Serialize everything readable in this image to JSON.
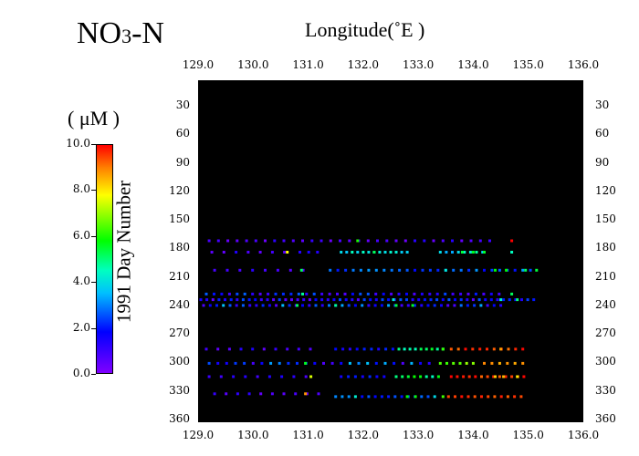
{
  "title": {
    "main": "NO",
    "sub": "3",
    "tail": "-N"
  },
  "colorbar": {
    "unit_label": "( μM )",
    "ticks": [
      "10.0",
      "8.0",
      "6.0",
      "4.0",
      "2.0",
      "0.0"
    ],
    "range": [
      0,
      10
    ],
    "colors": [
      "#8000ff",
      "#0000ff",
      "#00bfff",
      "#00ff00",
      "#ffff00",
      "#ff0000"
    ]
  },
  "chart_data": {
    "type": "scatter",
    "title": "NO3-N",
    "xlabel": "Longitude(˚E )",
    "ylabel": "1991 Day Number",
    "xlim": [
      129.0,
      136.0
    ],
    "ylim": [
      363,
      3
    ],
    "x_ticks": [
      "129.0",
      "130.0",
      "131.0",
      "132.0",
      "133.0",
      "134.0",
      "135.0",
      "136.0"
    ],
    "y_ticks": [
      "30",
      "60",
      "90",
      "120",
      "150",
      "180",
      "210",
      "240",
      "270",
      "300",
      "330",
      "360"
    ],
    "background": "#000000",
    "color_scale": {
      "min": 0,
      "max": 10,
      "unit": "μM"
    },
    "rows": [
      {
        "day": 172,
        "x_start": 129.2,
        "x_end": 134.4,
        "step": 0.17,
        "specials": [
          [
            131.9,
            6
          ],
          [
            134.7,
            10
          ]
        ],
        "low": [
          0.2,
          1.3
        ]
      },
      {
        "day": 184,
        "x_start": 129.25,
        "x_end": 130.7,
        "step": 0.22,
        "low": [
          0.2,
          1.4
        ],
        "specials": [
          [
            130.62,
            7.8
          ]
        ]
      },
      {
        "day": 184,
        "x_start": 130.85,
        "x_end": 131.2,
        "step": 0.16,
        "low": [
          1.2,
          1.5
        ]
      },
      {
        "day": 184,
        "x_start": 131.6,
        "x_end": 132.8,
        "step": 0.1,
        "low": [
          3.5,
          4.6
        ],
        "specials": [
          [
            132.2,
            5.2
          ]
        ]
      },
      {
        "day": 184,
        "x_start": 133.4,
        "x_end": 134.2,
        "step": 0.11,
        "low": [
          3.2,
          4.8
        ],
        "specials": [
          [
            133.8,
            5.4
          ],
          [
            134.0,
            5.6
          ],
          [
            134.2,
            5.5
          ],
          [
            134.7,
            4.5
          ]
        ]
      },
      {
        "day": 203,
        "x_start": 129.3,
        "x_end": 131.0,
        "step": 0.23,
        "low": [
          0.3,
          1.4
        ],
        "specials": [
          [
            130.88,
            5.2
          ]
        ]
      },
      {
        "day": 203,
        "x_start": 131.4,
        "x_end": 135.1,
        "step": 0.14,
        "low": [
          1.8,
          3.2
        ],
        "specials": [
          [
            133.5,
            4.2
          ],
          [
            134.4,
            5.8
          ],
          [
            134.6,
            5.8
          ],
          [
            134.95,
            5.2
          ],
          [
            135.15,
            5.4
          ]
        ]
      },
      {
        "day": 228,
        "x_start": 129.15,
        "x_end": 134.5,
        "step": 0.14,
        "low": [
          0.6,
          2.9
        ],
        "specials": [
          [
            130.9,
            4.8
          ],
          [
            134.7,
            5.2
          ]
        ]
      },
      {
        "day": 234,
        "x_start": 129.05,
        "x_end": 135.2,
        "step": 0.11,
        "low": [
          0.4,
          2.6
        ],
        "specials": [
          [
            132.55,
            4.2
          ],
          [
            134.5,
            4.4
          ],
          [
            134.8,
            5.0
          ]
        ]
      },
      {
        "day": 240,
        "x_start": 129.1,
        "x_end": 134.6,
        "step": 0.12,
        "low": [
          0.6,
          3.6
        ],
        "specials": [
          [
            130.8,
            5.2
          ],
          [
            131.5,
            4.8
          ],
          [
            132.6,
            5.4
          ],
          [
            132.9,
            5.6
          ]
        ]
      },
      {
        "day": 286,
        "x_start": 129.15,
        "x_end": 131.2,
        "step": 0.21,
        "low": [
          0.4,
          1.6
        ]
      },
      {
        "day": 286,
        "x_start": 131.5,
        "x_end": 132.55,
        "step": 0.13,
        "low": [
          0.9,
          2.2
        ]
      },
      {
        "day": 286,
        "x_start": 132.65,
        "x_end": 133.45,
        "step": 0.1,
        "low": [
          4.4,
          5.6
        ]
      },
      {
        "day": 286,
        "x_start": 133.6,
        "x_end": 135.0,
        "step": 0.13,
        "low": [
          9.0,
          10.0
        ],
        "specials": [
          [
            133.45,
            6.2
          ],
          [
            134.5,
            8.7
          ]
        ]
      },
      {
        "day": 301,
        "x_start": 129.2,
        "x_end": 133.2,
        "step": 0.16,
        "low": [
          0.4,
          3.8
        ],
        "specials": [
          [
            130.95,
            5.6
          ]
        ]
      },
      {
        "day": 301,
        "x_start": 133.4,
        "x_end": 134.0,
        "step": 0.12,
        "low": [
          6.2,
          7.0
        ]
      },
      {
        "day": 301,
        "x_start": 134.2,
        "x_end": 134.9,
        "step": 0.14,
        "low": [
          8.5,
          9.2
        ]
      },
      {
        "day": 315,
        "x_start": 129.2,
        "x_end": 131.05,
        "step": 0.22,
        "low": [
          0.6,
          1.8
        ],
        "specials": [
          [
            131.05,
            7.5
          ]
        ]
      },
      {
        "day": 315,
        "x_start": 131.6,
        "x_end": 132.5,
        "step": 0.13,
        "low": [
          1.5,
          2.6
        ]
      },
      {
        "day": 315,
        "x_start": 132.6,
        "x_end": 133.45,
        "step": 0.11,
        "low": [
          4.5,
          5.9
        ]
      },
      {
        "day": 315,
        "x_start": 133.6,
        "x_end": 135.0,
        "step": 0.11,
        "low": [
          9.2,
          10.0
        ],
        "specials": [
          [
            134.4,
            8.3
          ],
          [
            134.55,
            8.5
          ],
          [
            134.8,
            8.0
          ]
        ]
      },
      {
        "day": 333,
        "x_start": 129.3,
        "x_end": 131.2,
        "step": 0.21,
        "low": [
          0.4,
          1.5
        ],
        "specials": [
          [
            130.95,
            8.8
          ]
        ]
      },
      {
        "day": 336,
        "x_start": 131.5,
        "x_end": 133.4,
        "step": 0.12,
        "low": [
          1.6,
          4.4
        ],
        "specials": [
          [
            132.8,
            5.8
          ],
          [
            132.95,
            5.9
          ],
          [
            133.45,
            6.3
          ]
        ]
      },
      {
        "day": 336,
        "x_start": 133.55,
        "x_end": 134.95,
        "step": 0.12,
        "low": [
          9.0,
          10.0
        ]
      }
    ]
  }
}
